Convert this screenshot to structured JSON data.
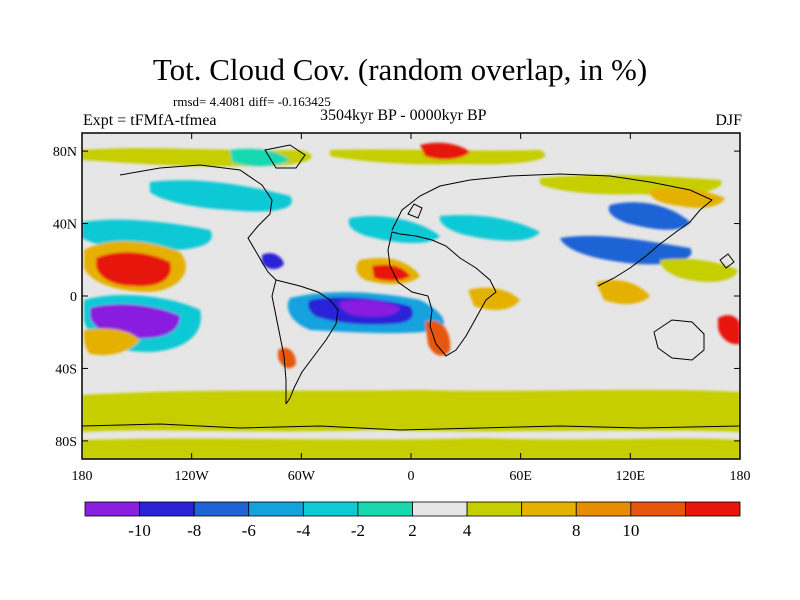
{
  "title": "Tot. Cloud Cov. (random overlap, in %)",
  "stats": "rmsd= 4.4081 diff= -0.163425",
  "experiment": "Expt = tFMfA-tfmea",
  "period": "3504kyr BP - 0000kyr BP",
  "season": "DJF",
  "lat_ticks": [
    {
      "label": "80N",
      "lat": 80
    },
    {
      "label": "40N",
      "lat": 40
    },
    {
      "label": "0",
      "lat": 0
    },
    {
      "label": "40S",
      "lat": -40
    },
    {
      "label": "80S",
      "lat": -80
    }
  ],
  "lon_ticks": [
    {
      "label": "180",
      "lon": -180
    },
    {
      "label": "120W",
      "lon": -120
    },
    {
      "label": "60W",
      "lon": -60
    },
    {
      "label": "0",
      "lon": 0
    },
    {
      "label": "60E",
      "lon": 60
    },
    {
      "label": "120E",
      "lon": 120
    },
    {
      "label": "180",
      "lon": 180
    }
  ],
  "colorbar": {
    "colors": [
      "#8a1fe0",
      "#2b22d6",
      "#1f63d6",
      "#14a2df",
      "#11c9d5",
      "#19d8b0",
      "#e6e6e6",
      "#c6ce00",
      "#e5b100",
      "#ea8c00",
      "#e7570b",
      "#e7160b"
    ],
    "labels": [
      "-10",
      "-8",
      "-6",
      "-4",
      "-2",
      "2",
      "4",
      "8",
      "10"
    ]
  },
  "colors": {
    "land_line": "#000000",
    "background": "#e6e6e6"
  }
}
